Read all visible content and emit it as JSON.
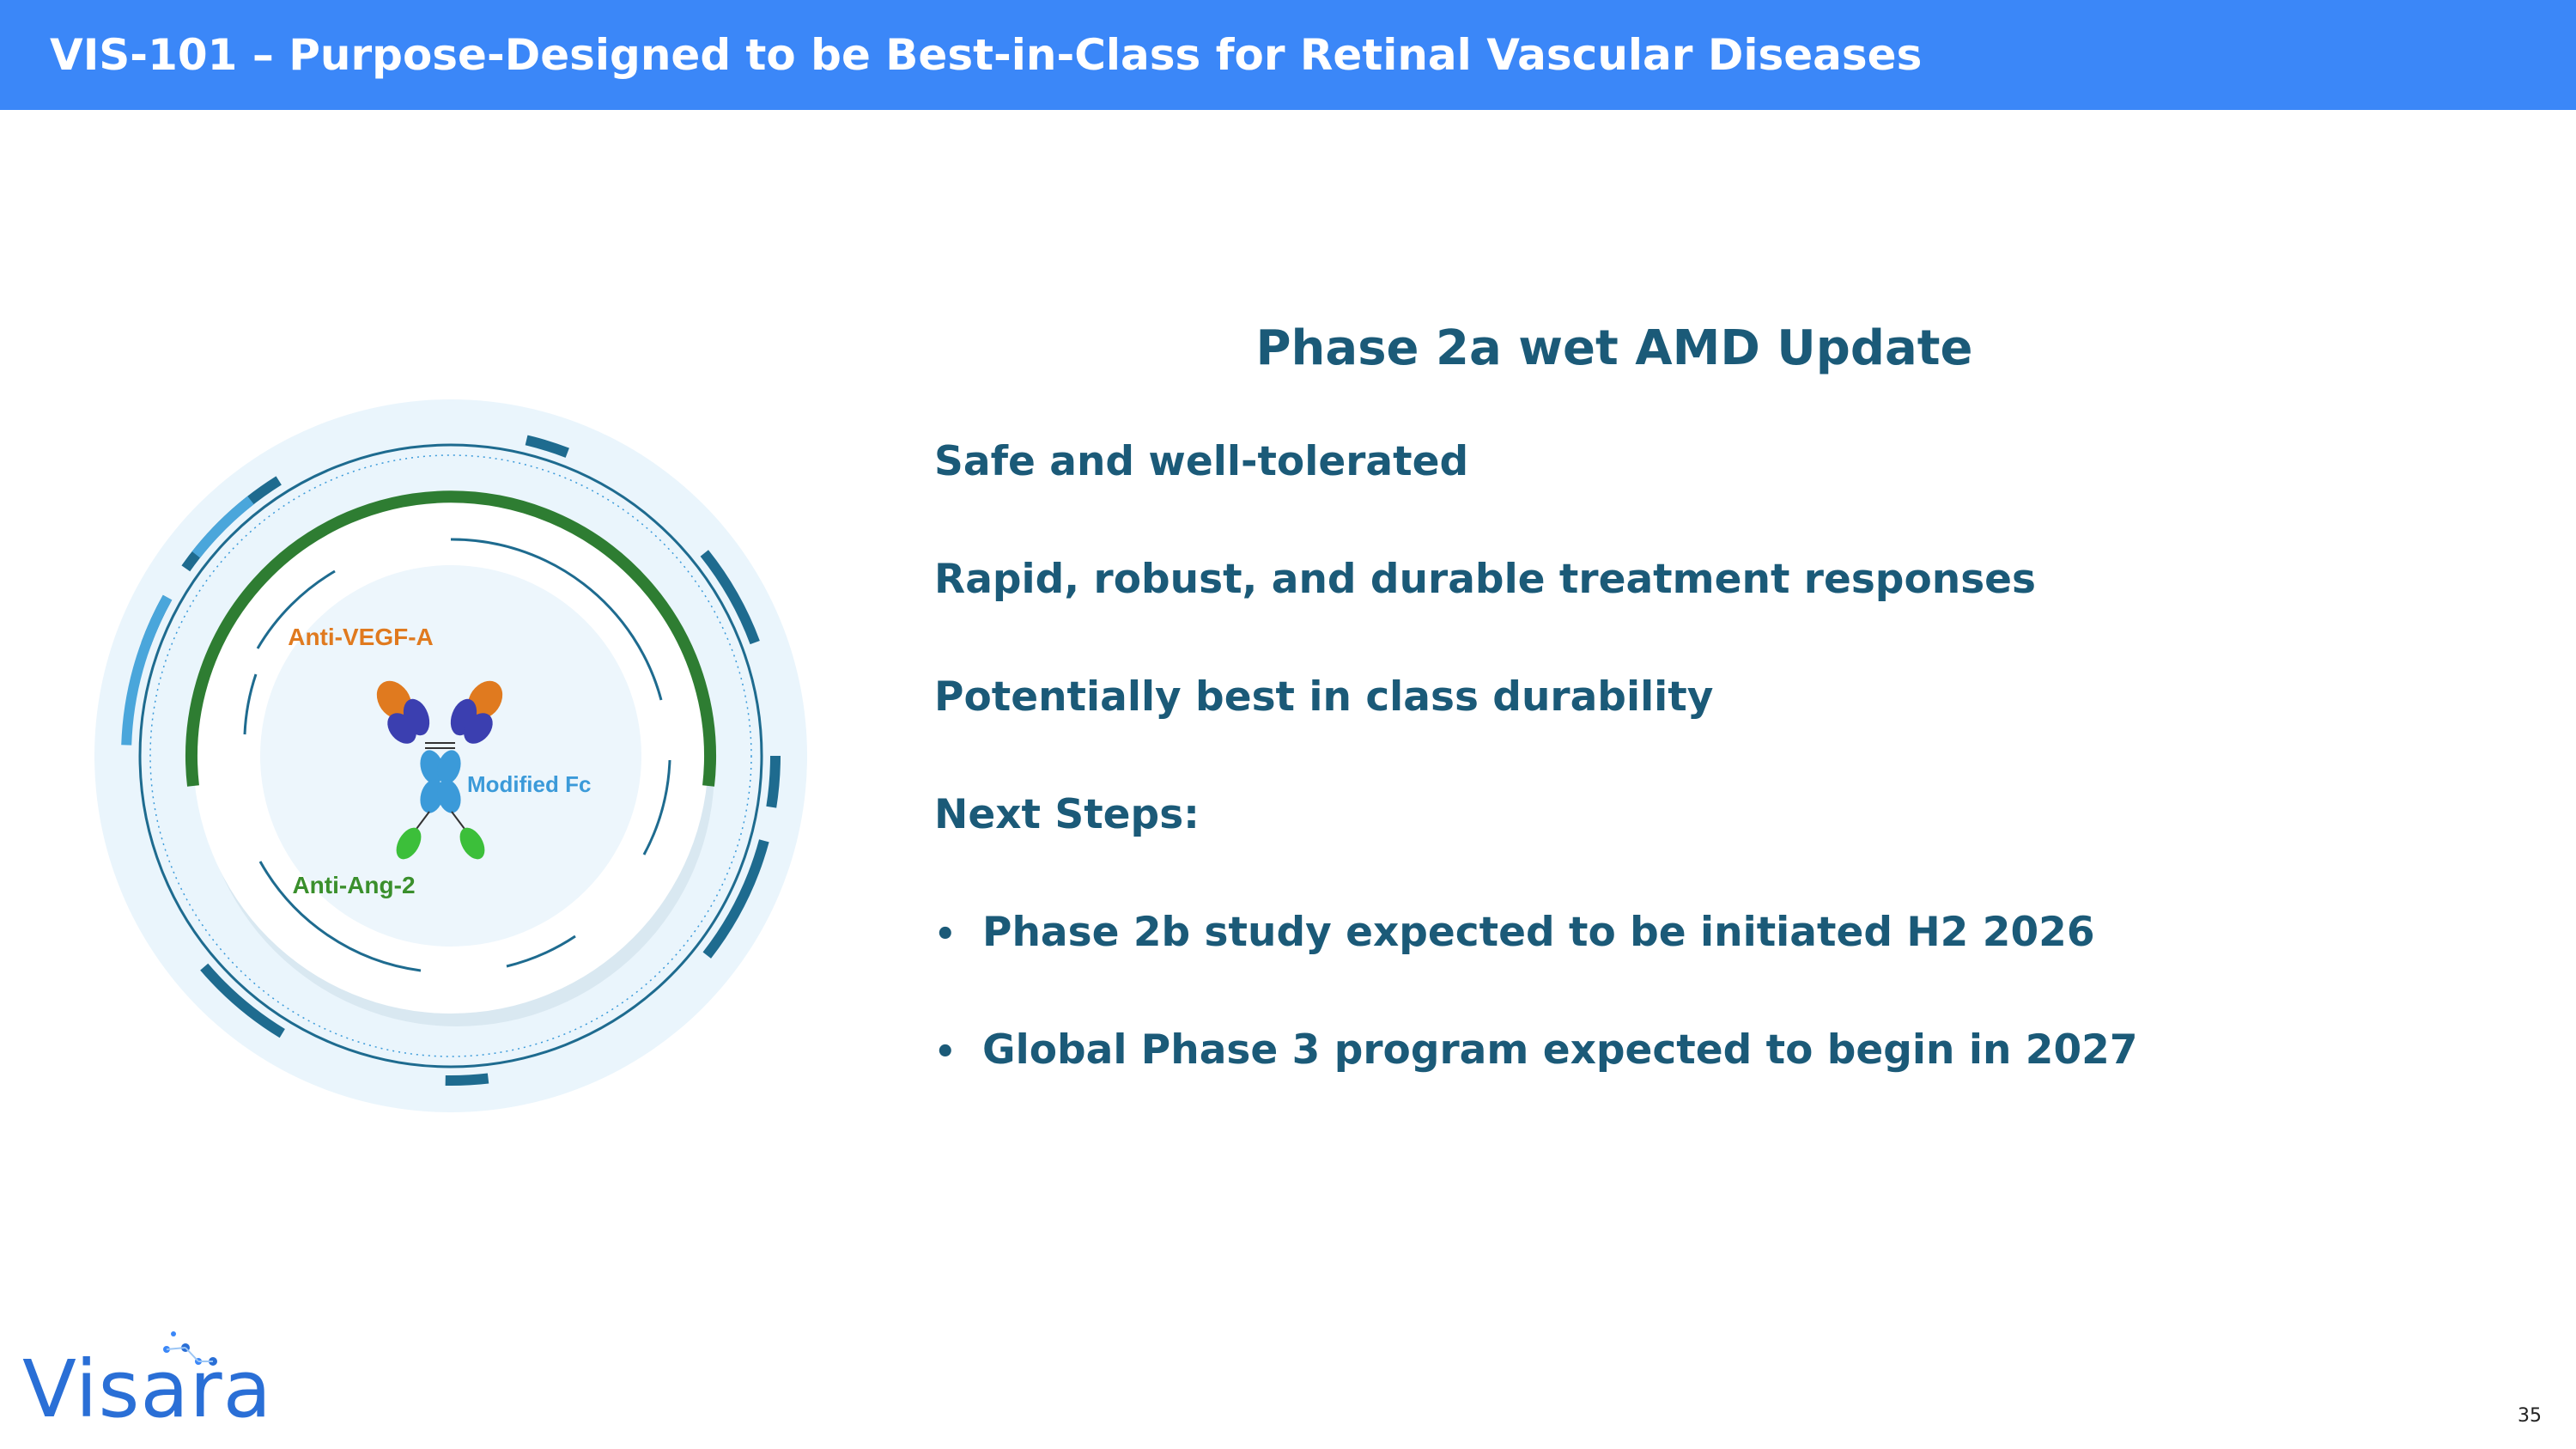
{
  "header": {
    "title": "VIS-101 – Purpose-Designed to be Best-in-Class for Retinal Vascular Diseases",
    "background_color": "#3b87f8"
  },
  "diagram": {
    "labels": {
      "anti_vegf": "Anti-VEGF-A",
      "modified_fc": "Modified Fc",
      "anti_ang2": "Anti-Ang-2"
    },
    "colors": {
      "anti_vegf": "#e07a1f",
      "modified_fc": "#3b9ad9",
      "anti_ang2": "#3a8f2c",
      "ring_green": "#2e7d32",
      "ring_teal": "#1e6b8f",
      "ring_blue": "#3b9ad9"
    }
  },
  "content": {
    "heading": "Phase 2a wet AMD Update",
    "points": [
      "Safe and well-tolerated",
      "Rapid, robust, and durable treatment responses",
      "Potentially best in class durability",
      "Next Steps:"
    ],
    "bullets": [
      "Phase 2b study expected to be initiated H2 2026",
      "Global Phase 3 program expected to begin in 2027"
    ],
    "bullet_symbol": "•",
    "text_color": "#1b5a78"
  },
  "footer": {
    "logo_text": "Visara",
    "page_number": "35"
  }
}
